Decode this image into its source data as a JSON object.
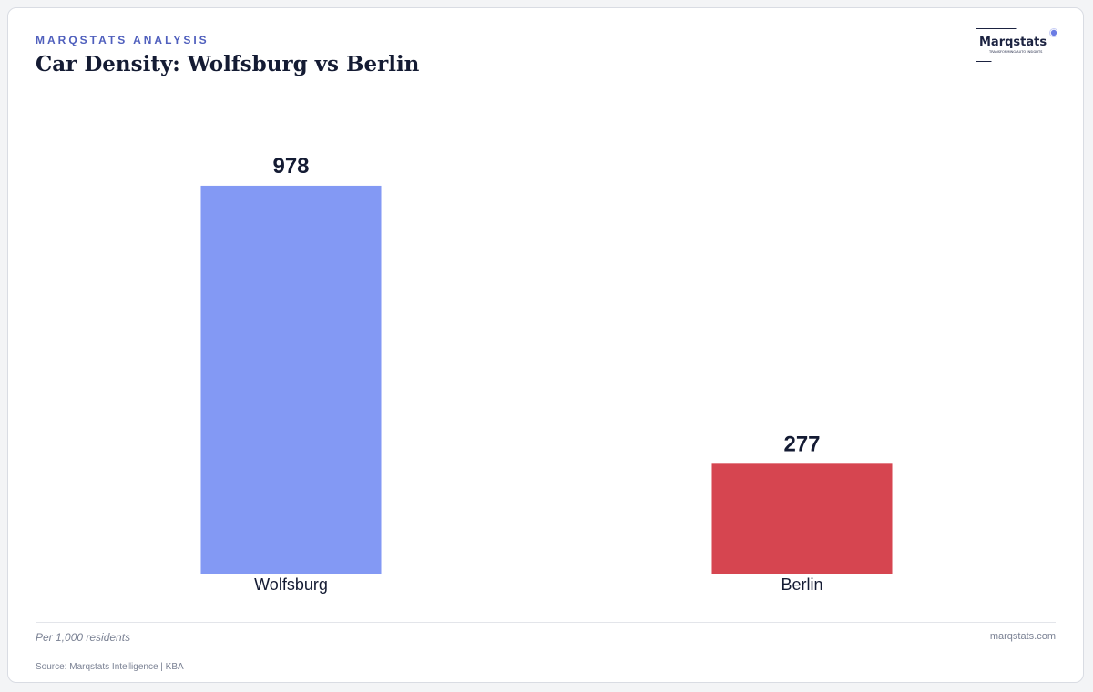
{
  "header": {
    "kicker": "MARQSTATS ANALYSIS",
    "title": "Car Density: Wolfsburg vs Berlin"
  },
  "logo": {
    "wordmark": "Marqstats",
    "tagline": "TRANSFORMING AUTO INSIGHTS",
    "accent": "#5b6ee1"
  },
  "chart_data": {
    "type": "bar",
    "categories": [
      "Wolfsburg",
      "Berlin"
    ],
    "values": [
      978,
      277
    ],
    "colors": [
      "#8399f4",
      "#d64550"
    ],
    "ylim": [
      0,
      1150
    ],
    "grid": false,
    "title": "",
    "xlabel": "",
    "ylabel": ""
  },
  "footer": {
    "unit": "Per 1,000 residents",
    "site": "marqstats.com",
    "source": "Source: Marqstats Intelligence | KBA"
  }
}
